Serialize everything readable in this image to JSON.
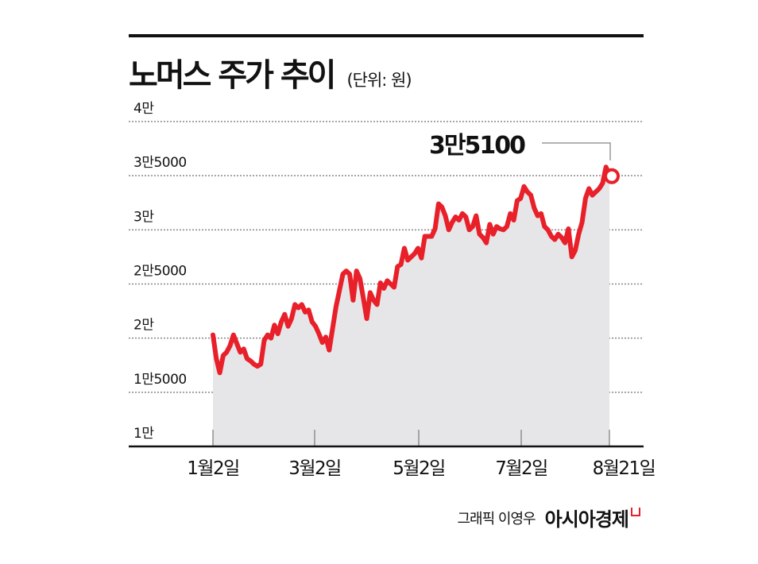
{
  "header": {
    "title": "노머스 주가 추이",
    "unit": "(단위: 원)"
  },
  "callout": {
    "label": "3만5100"
  },
  "footer": {
    "credit": "그래픽 이영우",
    "brand": "아시아경제"
  },
  "colors": {
    "line": "#e8202a",
    "area": "#e6e6e8",
    "grid": "#888888",
    "axis": "#111111"
  },
  "chart_data": {
    "type": "line",
    "title": "노머스 주가 추이",
    "subtitle": "(단위: 원)",
    "xlabel": "",
    "ylabel": "원",
    "ylim": [
      10000,
      40000
    ],
    "grid": true,
    "legend": "none",
    "yticks": [
      {
        "value": 40000,
        "label": "4만"
      },
      {
        "value": 35000,
        "label": "3만5000"
      },
      {
        "value": 30000,
        "label": "3만"
      },
      {
        "value": 25000,
        "label": "2만5000"
      },
      {
        "value": 20000,
        "label": "2만"
      },
      {
        "value": 15000,
        "label": "1만5000"
      },
      {
        "value": 10000,
        "label": "1만"
      }
    ],
    "xticks": [
      {
        "index": 0,
        "label": "1월2일"
      },
      {
        "index": 29,
        "label": "3월2일"
      },
      {
        "index": 59,
        "label": "5월2일"
      },
      {
        "index": 89,
        "label": "7월2일"
      },
      {
        "index": 114,
        "label": "8월21일"
      }
    ],
    "annotations": [
      {
        "label": "3만5100",
        "x_label": "8월21일",
        "value": 35100,
        "marker": "open-circle"
      }
    ],
    "series": [
      {
        "name": "노머스 주가",
        "values": [
          20300,
          18100,
          16800,
          18400,
          18700,
          19300,
          20300,
          19500,
          18700,
          19000,
          18100,
          17900,
          17600,
          17400,
          17600,
          19800,
          20300,
          20000,
          21200,
          20400,
          21500,
          22200,
          21100,
          21800,
          23100,
          22800,
          23100,
          22400,
          22600,
          21500,
          21100,
          20400,
          19600,
          20100,
          18900,
          20900,
          22900,
          24400,
          25900,
          26200,
          25900,
          23500,
          26200,
          25500,
          23700,
          21800,
          24200,
          23500,
          23100,
          25100,
          24600,
          25300,
          25000,
          24700,
          26600,
          26800,
          28300,
          27200,
          27500,
          27800,
          28300,
          27400,
          29400,
          29400,
          29400,
          30100,
          32400,
          32100,
          31300,
          30000,
          30700,
          31200,
          30900,
          31500,
          31200,
          30000,
          30300,
          31300,
          29600,
          29300,
          28800,
          30500,
          29600,
          30300,
          30100,
          30000,
          30300,
          31500,
          30900,
          32700,
          32900,
          34000,
          33500,
          33200,
          32000,
          31300,
          31500,
          30300,
          30000,
          29400,
          29100,
          29600,
          29300,
          28800,
          30100,
          27500,
          28100,
          29600,
          30700,
          32900,
          33800,
          33200,
          33500,
          33800,
          34300,
          35800,
          35100
        ]
      }
    ]
  }
}
